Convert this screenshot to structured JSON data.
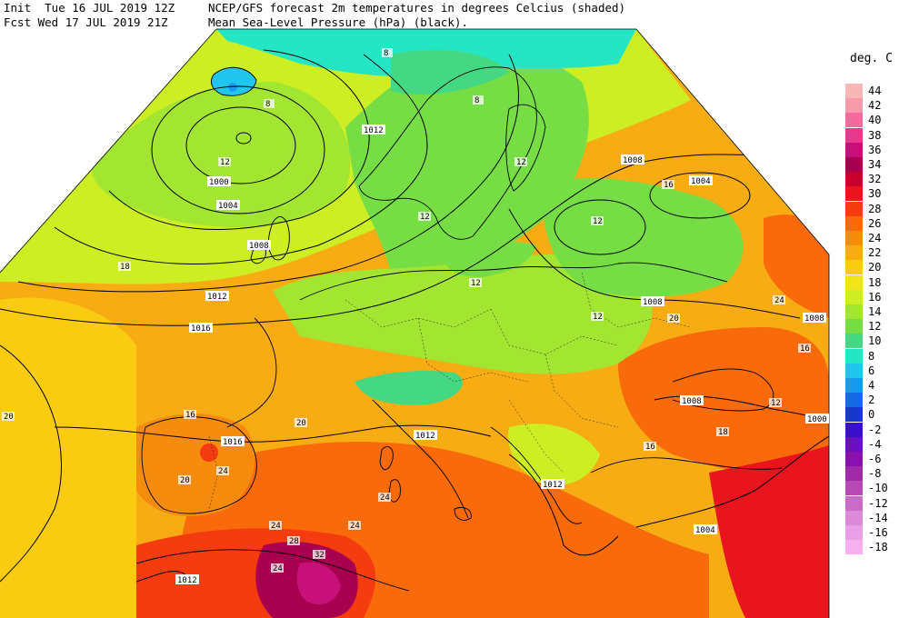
{
  "header": {
    "init_line": "Init  Tue 16 JUL 2019 12Z",
    "fcst_line": "Fcst Wed 17 JUL 2019 21Z",
    "title_line1": "NCEP/GFS forecast 2m temperatures in degrees Celcius (shaded)",
    "title_line2": "Mean Sea-Level Pressure (hPa) (black)."
  },
  "legend": {
    "title": "deg. C",
    "entries": [
      {
        "label": "44",
        "color": "#f9b6b6"
      },
      {
        "label": "42",
        "color": "#f79aac"
      },
      {
        "label": "40",
        "color": "#f46a9c"
      },
      {
        "label": "38",
        "color": "#e83a8c"
      },
      {
        "label": "36",
        "color": "#c8107a"
      },
      {
        "label": "34",
        "color": "#a8004e"
      },
      {
        "label": "32",
        "color": "#c80030"
      },
      {
        "label": "30",
        "color": "#e8141e"
      },
      {
        "label": "28",
        "color": "#f43c10"
      },
      {
        "label": "26",
        "color": "#f86a0a"
      },
      {
        "label": "24",
        "color": "#f68c0e"
      },
      {
        "label": "22",
        "color": "#f7ac14"
      },
      {
        "label": "20",
        "color": "#f9cc12"
      },
      {
        "label": "18",
        "color": "#f0e41a"
      },
      {
        "label": "16",
        "color": "#ccee22"
      },
      {
        "label": "14",
        "color": "#a2e632"
      },
      {
        "label": "12",
        "color": "#76de44"
      },
      {
        "label": "10",
        "color": "#44d882"
      },
      {
        "label": "8",
        "color": "#24e6c4"
      },
      {
        "label": "6",
        "color": "#20c6ee"
      },
      {
        "label": "4",
        "color": "#1a9aee"
      },
      {
        "label": "2",
        "color": "#166ae6"
      },
      {
        "label": "0",
        "color": "#1838cc"
      },
      {
        "label": "-2",
        "color": "#3a10c8"
      },
      {
        "label": "-4",
        "color": "#6a10c0"
      },
      {
        "label": "-6",
        "color": "#8a10b0"
      },
      {
        "label": "-8",
        "color": "#a02aa8"
      },
      {
        "label": "-10",
        "color": "#b84ab8"
      },
      {
        "label": "-12",
        "color": "#cc6ac8"
      },
      {
        "label": "-14",
        "color": "#dc8ad8"
      },
      {
        "label": "-16",
        "color": "#ea9ee6"
      },
      {
        "label": "-18",
        "color": "#f6b0f0"
      }
    ]
  },
  "isobar_labels": [
    "1000",
    "1004",
    "1008",
    "1012",
    "1016"
  ],
  "temperature_labels": [
    "8",
    "12",
    "16",
    "18",
    "20",
    "24",
    "28",
    "32"
  ]
}
